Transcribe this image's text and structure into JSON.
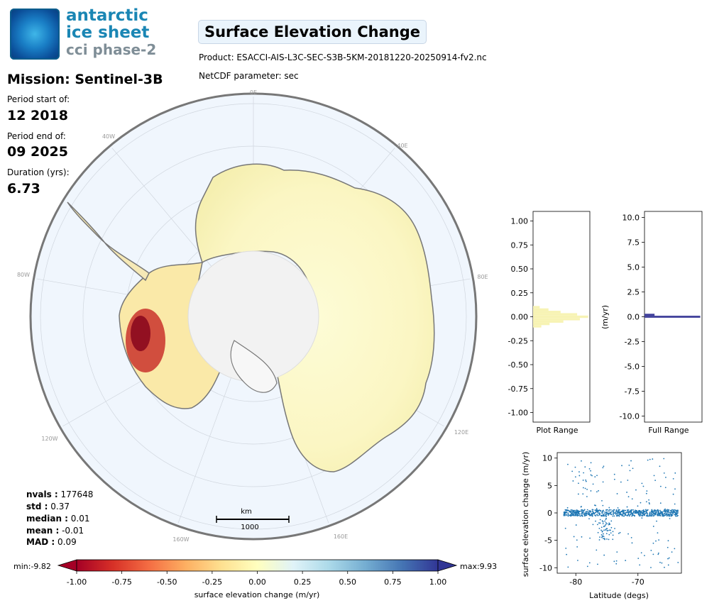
{
  "logo": {
    "line1": "antarctic",
    "line2": "ice sheet",
    "line3": "cci phase-2"
  },
  "header": {
    "title": "Surface Elevation Change",
    "product": "Product: ESACCI-AIS-L3C-SEC-S3B-5KM-20181220-20250914-fv2.nc",
    "parameter": "NetCDF parameter: sec"
  },
  "mission": {
    "title": "Mission: Sentinel-3B",
    "period_start_label": "Period start of:",
    "period_start": "12 2018",
    "period_end_label": "Period end of:",
    "period_end": "09 2025",
    "duration_label": "Duration (yrs):",
    "duration": "6.73"
  },
  "stats": {
    "nvals_label": "nvals :",
    "nvals": "177648",
    "std_label": "std :",
    "std": "0.37",
    "median_label": "median :",
    "median": "0.01",
    "mean_label": "mean :",
    "mean": "-0.01",
    "mad_label": "MAD :",
    "mad": "0.09"
  },
  "map": {
    "longitude_labels": [
      "0E",
      "40E",
      "80E",
      "120E",
      "160E",
      "160W",
      "120W",
      "80W",
      "40W"
    ],
    "scalebar_unit": "km",
    "scalebar_value": "1000"
  },
  "colorbar": {
    "min_label": "min:-9.82",
    "max_label": "max:9.93",
    "ticks": [
      "-1.00",
      "-0.75",
      "-0.50",
      "-0.25",
      "0.00",
      "0.25",
      "0.50",
      "0.75",
      "1.00"
    ],
    "xlabel": "surface elevation change (m/yr)",
    "colors": [
      "#a50026",
      "#d73027",
      "#f46d43",
      "#fdae61",
      "#fee090",
      "#ffffbf",
      "#e0f3f8",
      "#abd9e9",
      "#74add1",
      "#4575b4",
      "#313695"
    ]
  },
  "chart_data": [
    {
      "type": "bar",
      "name": "plot-range-histogram",
      "xlabel": "Plot Range",
      "ylabel": "",
      "ylim": [
        -1.1,
        1.1
      ],
      "yticks": [
        "1.00",
        "0.75",
        "0.50",
        "0.25",
        "0.00",
        "-0.25",
        "-0.50",
        "-0.75",
        "-1.00"
      ],
      "orientation": "horizontal",
      "bins": [
        -0.1,
        -0.075,
        -0.05,
        -0.025,
        0.0,
        0.025,
        0.05,
        0.075,
        0.1
      ],
      "relative_counts": [
        0.15,
        0.3,
        0.55,
        0.85,
        1.0,
        0.8,
        0.5,
        0.28,
        0.12
      ]
    },
    {
      "type": "bar",
      "name": "full-range-histogram",
      "xlabel": "Full Range",
      "ylabel": "(m/yr)",
      "ylim": [
        -10.6,
        10.6
      ],
      "yticks": [
        "10.0",
        "7.5",
        "5.0",
        "2.5",
        "0.0",
        "-2.5",
        "-5.0",
        "-7.5",
        "-10.0"
      ],
      "orientation": "horizontal",
      "bins": [
        0.2,
        0.0
      ],
      "relative_counts": [
        0.18,
        1.0
      ]
    },
    {
      "type": "scatter",
      "xlabel": "Latitude (degs)",
      "ylabel": "surface elevation change (m/yr)",
      "xlim": [
        -83,
        -63
      ],
      "ylim": [
        -11,
        11
      ],
      "xticks": [
        "-80",
        "-70"
      ],
      "yticks": [
        "10",
        "5",
        "0",
        "-5",
        "-10"
      ],
      "color": "#1f77b4",
      "description_points": "dense band near 0 across latitudes -82 to -64, dip to about -5 near latitude -75"
    }
  ]
}
